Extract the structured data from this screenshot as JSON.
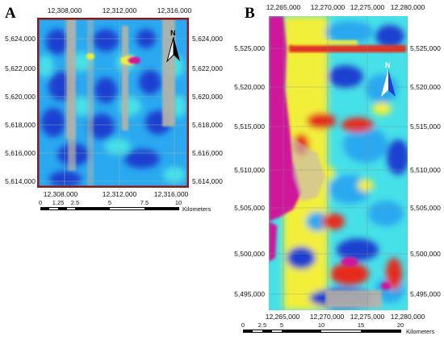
{
  "panel_a": {
    "letter": "A",
    "x_ticks_top": [
      "12,308,000",
      "12,312,000",
      "12,316,000"
    ],
    "x_ticks_bottom": [
      "12,308,000",
      "12,312,000",
      "12,316,000"
    ],
    "y_ticks_left": [
      "5,624,000",
      "5,622,000",
      "5,620,000",
      "5,618,000",
      "5,616,000",
      "5,614,000"
    ],
    "y_ticks_right": [
      "5,624,000",
      "5,622,000",
      "5,620,000",
      "5,618,000",
      "5,616,000",
      "5,614,000"
    ],
    "scale_labels": [
      "0",
      "1.25",
      "2.5",
      "5",
      "7.5",
      "10"
    ],
    "scale_unit": "Kilometers",
    "north_label": "N",
    "frame_color": "#8b1a1a"
  },
  "panel_b": {
    "letter": "B",
    "x_ticks_top": [
      "12,265,000",
      "12,270,000",
      "12,275,000",
      "12,280,000"
    ],
    "x_ticks_bottom": [
      "12,265,000",
      "12,270,000",
      "12,275,000",
      "12,280,000"
    ],
    "y_ticks_left": [
      "5,525,000",
      "5,520,000",
      "5,515,000",
      "5,510,000",
      "5,505,000",
      "5,500,000",
      "5,495,000"
    ],
    "y_ticks_right": [
      "5,525,000",
      "5,520,000",
      "5,515,000",
      "5,510,000",
      "5,505,000",
      "5,500,000",
      "5,495,000"
    ],
    "scale_labels": [
      "0",
      "2.5",
      "5",
      "10",
      "15",
      "20"
    ],
    "scale_unit": "Kilometers",
    "north_label": "N"
  },
  "colors": {
    "low": "#1e3fd0",
    "mid_low": "#2aa9f0",
    "mid": "#46e0e8",
    "mid_high": "#f2ef3a",
    "high": "#e62a1c",
    "very_high": "#d0169a",
    "nodata": "#b8b3a8"
  }
}
